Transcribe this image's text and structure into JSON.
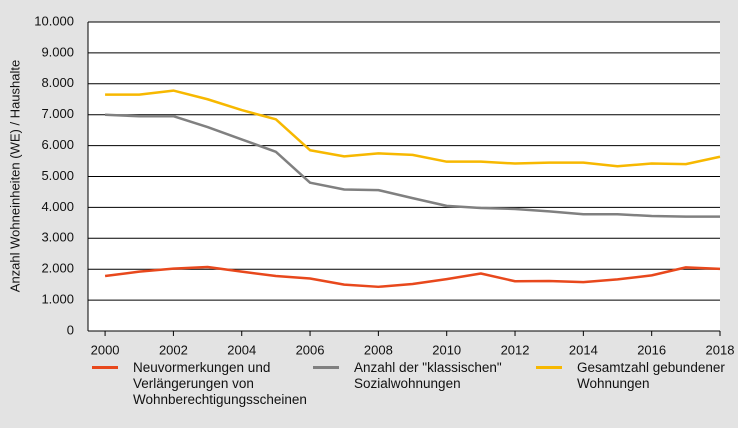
{
  "chart_data": {
    "type": "line",
    "ylabel": "Anzahl Wohneinheiten (WE) / Haushalte",
    "x": [
      2000,
      2001,
      2002,
      2003,
      2004,
      2005,
      2006,
      2007,
      2008,
      2009,
      2010,
      2011,
      2012,
      2013,
      2014,
      2015,
      2016,
      2017,
      2018
    ],
    "series": [
      {
        "name": "Neuvormerkungen und Verlängerungen von Wohnberechtigungsscheinen",
        "color": "#e8481c",
        "values": [
          1780,
          1920,
          2020,
          2070,
          1920,
          1780,
          1700,
          1500,
          1430,
          1520,
          1680,
          1860,
          1610,
          1620,
          1580,
          1670,
          1800,
          2060,
          2010
        ]
      },
      {
        "name": "Anzahl der \"klassischen\" Sozialwohnungen",
        "color": "#808080",
        "values": [
          7000,
          6950,
          6950,
          6600,
          6200,
          5800,
          4800,
          4580,
          4560,
          4300,
          4050,
          3980,
          3950,
          3870,
          3780,
          3780,
          3720,
          3700,
          3700
        ]
      },
      {
        "name": "Gesamtzahl gebundener Wohnungen",
        "color": "#f7b800",
        "values": [
          7650,
          7650,
          7780,
          7500,
          7150,
          6850,
          5850,
          5650,
          5750,
          5700,
          5480,
          5480,
          5420,
          5450,
          5450,
          5330,
          5420,
          5400,
          5640
        ]
      }
    ],
    "xlim": [
      1999.5,
      2018
    ],
    "xticks": [
      2000,
      2002,
      2004,
      2006,
      2008,
      2010,
      2012,
      2014,
      2016,
      2018
    ],
    "ylim": [
      0,
      10000
    ],
    "yticks": [
      0,
      {
        "value": 1000,
        "label": "1.000"
      },
      {
        "value": 2000,
        "label": "2.000"
      },
      {
        "value": 3000,
        "label": "3.000"
      },
      {
        "value": 4000,
        "label": "4.000"
      },
      {
        "value": 5000,
        "label": "5.000"
      },
      {
        "value": 6000,
        "label": "6.000"
      },
      {
        "value": 7000,
        "label": "7.000"
      },
      {
        "value": 8000,
        "label": "8.000"
      },
      {
        "value": 9000,
        "label": "9.000"
      },
      {
        "value": 10000,
        "label": "10.000"
      }
    ],
    "grid": true,
    "legend": "bottom"
  }
}
